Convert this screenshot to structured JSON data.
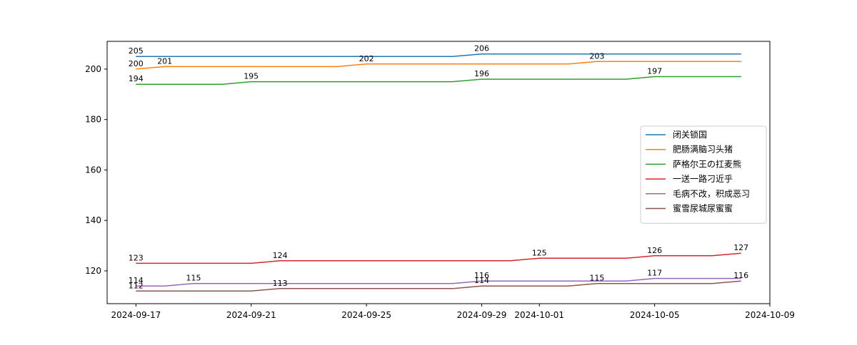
{
  "chart_data": {
    "type": "line",
    "title": "",
    "xlabel": "",
    "ylabel": "",
    "x": [
      "2024-09-17",
      "2024-09-18",
      "2024-09-19",
      "2024-09-20",
      "2024-09-21",
      "2024-09-22",
      "2024-09-23",
      "2024-09-24",
      "2024-09-25",
      "2024-09-26",
      "2024-09-27",
      "2024-09-28",
      "2024-09-29",
      "2024-09-30",
      "2024-10-01",
      "2024-10-02",
      "2024-10-03",
      "2024-10-04",
      "2024-10-05",
      "2024-10-06",
      "2024-10-07",
      "2024-10-08"
    ],
    "xlim": [
      "2024-09-16",
      "2024-10-09"
    ],
    "xticks": [
      "2024-09-17",
      "2024-09-21",
      "2024-09-25",
      "2024-09-29",
      "2024-10-01",
      "2024-10-05",
      "2024-10-09"
    ],
    "ylim": [
      107,
      211
    ],
    "yticks": [
      120,
      140,
      160,
      180,
      200
    ],
    "grid": false,
    "legend_position": "center-right",
    "series": [
      {
        "name": "闭关锁国",
        "color": "#1f77b4",
        "values": [
          205,
          205,
          205,
          205,
          205,
          205,
          205,
          205,
          205,
          205,
          205,
          205,
          206,
          206,
          206,
          206,
          206,
          206,
          206,
          206,
          206,
          206
        ],
        "labels": [
          {
            "x": "2024-09-17",
            "text": "205"
          },
          {
            "x": "2024-09-29",
            "text": "206"
          }
        ]
      },
      {
        "name": "肥肠满脑习头猪",
        "color": "#ff7f0e",
        "values": [
          200,
          201,
          201,
          201,
          201,
          201,
          201,
          201,
          202,
          202,
          202,
          202,
          202,
          202,
          202,
          202,
          203,
          203,
          203,
          203,
          203,
          203
        ],
        "labels": [
          {
            "x": "2024-09-17",
            "text": "200"
          },
          {
            "x": "2024-09-18",
            "text": "201"
          },
          {
            "x": "2024-09-25",
            "text": "202"
          },
          {
            "x": "2024-10-03",
            "text": "203"
          }
        ]
      },
      {
        "name": "萨格尔王の扛麦熊",
        "color": "#2ca02c",
        "values": [
          194,
          194,
          194,
          194,
          195,
          195,
          195,
          195,
          195,
          195,
          195,
          195,
          196,
          196,
          196,
          196,
          196,
          196,
          197,
          197,
          197,
          197
        ],
        "labels": [
          {
            "x": "2024-09-17",
            "text": "194"
          },
          {
            "x": "2024-09-21",
            "text": "195"
          },
          {
            "x": "2024-09-29",
            "text": "196"
          },
          {
            "x": "2024-10-05",
            "text": "197"
          }
        ]
      },
      {
        "name": "一送一路刁近乎",
        "color": "#d62728",
        "values": [
          123,
          123,
          123,
          123,
          123,
          124,
          124,
          124,
          124,
          124,
          124,
          124,
          124,
          124,
          125,
          125,
          125,
          125,
          126,
          126,
          126,
          127
        ],
        "labels": [
          {
            "x": "2024-09-17",
            "text": "123"
          },
          {
            "x": "2024-09-22",
            "text": "124"
          },
          {
            "x": "2024-10-01",
            "text": "125"
          },
          {
            "x": "2024-10-05",
            "text": "126"
          },
          {
            "x": "2024-10-08",
            "text": "127"
          }
        ]
      },
      {
        "name": "毛病不改，积成恶习",
        "color": "#9467bd",
        "values": [
          114,
          114,
          115,
          115,
          115,
          115,
          115,
          115,
          115,
          115,
          115,
          115,
          116,
          116,
          116,
          116,
          116,
          116,
          117,
          117,
          117,
          117
        ],
        "labels": [
          {
            "x": "2024-09-17",
            "text": "114"
          },
          {
            "x": "2024-09-19",
            "text": "115"
          },
          {
            "x": "2024-09-29",
            "text": "116"
          },
          {
            "x": "2024-10-05",
            "text": "117"
          }
        ]
      },
      {
        "name": "蜜雪尿城尿蜜蜜",
        "color": "#8c564b",
        "values": [
          112,
          112,
          112,
          112,
          112,
          113,
          113,
          113,
          113,
          113,
          113,
          113,
          114,
          114,
          114,
          114,
          115,
          115,
          115,
          115,
          115,
          116
        ],
        "labels": [
          {
            "x": "2024-09-17",
            "text": "112"
          },
          {
            "x": "2024-09-22",
            "text": "113"
          },
          {
            "x": "2024-09-29",
            "text": "114"
          },
          {
            "x": "2024-10-03",
            "text": "115"
          },
          {
            "x": "2024-10-08",
            "text": "116"
          }
        ]
      }
    ]
  }
}
